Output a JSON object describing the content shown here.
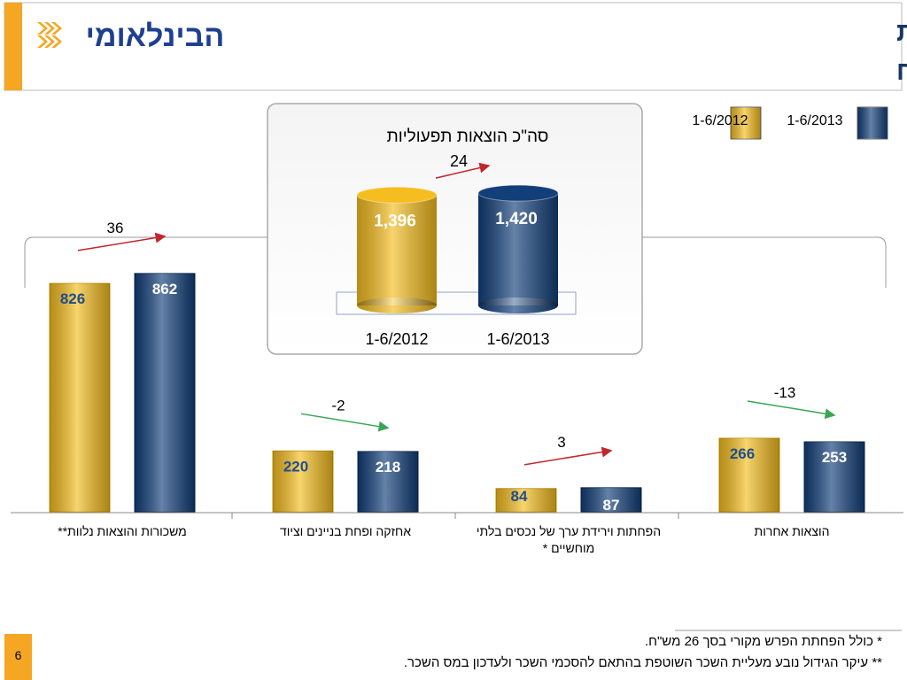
{
  "header": {
    "title_line1": "הוצאות תפעוליות ואחרות",
    "title_line2": "במיליוני ש\"ח",
    "logo": "הבינלאומי"
  },
  "chart_data": [
    {
      "type": "bar",
      "categories": [
        "משכורות והוצאות נלוות**",
        "אחזקה ופחת בניינים וציוד",
        "הפחתות וירידת ערך של נכסים בלתי מוחשיים *",
        "הוצאות אחרות"
      ],
      "series": [
        {
          "name": "1-6/2012",
          "color": "#f5bd1f",
          "values": [
            826,
            220,
            84,
            266
          ]
        },
        {
          "name": "1-6/2013",
          "color": "#123f7a",
          "values": [
            862,
            218,
            87,
            253
          ]
        }
      ],
      "ylim": [
        0,
        900
      ],
      "annotations": [
        {
          "text": "36",
          "color": "#c0272d"
        },
        {
          "text": "2-",
          "color": "#3aa655"
        },
        {
          "text": "3",
          "color": "#c0272d"
        },
        {
          "text": "13-",
          "color": "#3aa655"
        }
      ]
    },
    {
      "type": "cylinder",
      "title": "סה\"כ הוצאות תפעוליות",
      "categories": [
        "1-6/2012",
        "1-6/2013"
      ],
      "values": [
        1396,
        1420
      ],
      "value_labels": [
        "1,396",
        "1,420"
      ],
      "colors": [
        "#f5bd1f",
        "#123f7a"
      ],
      "ylim": [
        0,
        1500
      ],
      "annotation": {
        "text": "24",
        "color": "#c0272d"
      }
    }
  ],
  "footnotes": [
    "*   כולל הפחתת הפרש מקורי בסך 26 מש\"ח.",
    "** עיקר הגידול נובע מעליית השכר השוטפת בהתאם להסכמי השכר ולעדכון במס השכר."
  ],
  "page_number": 6
}
